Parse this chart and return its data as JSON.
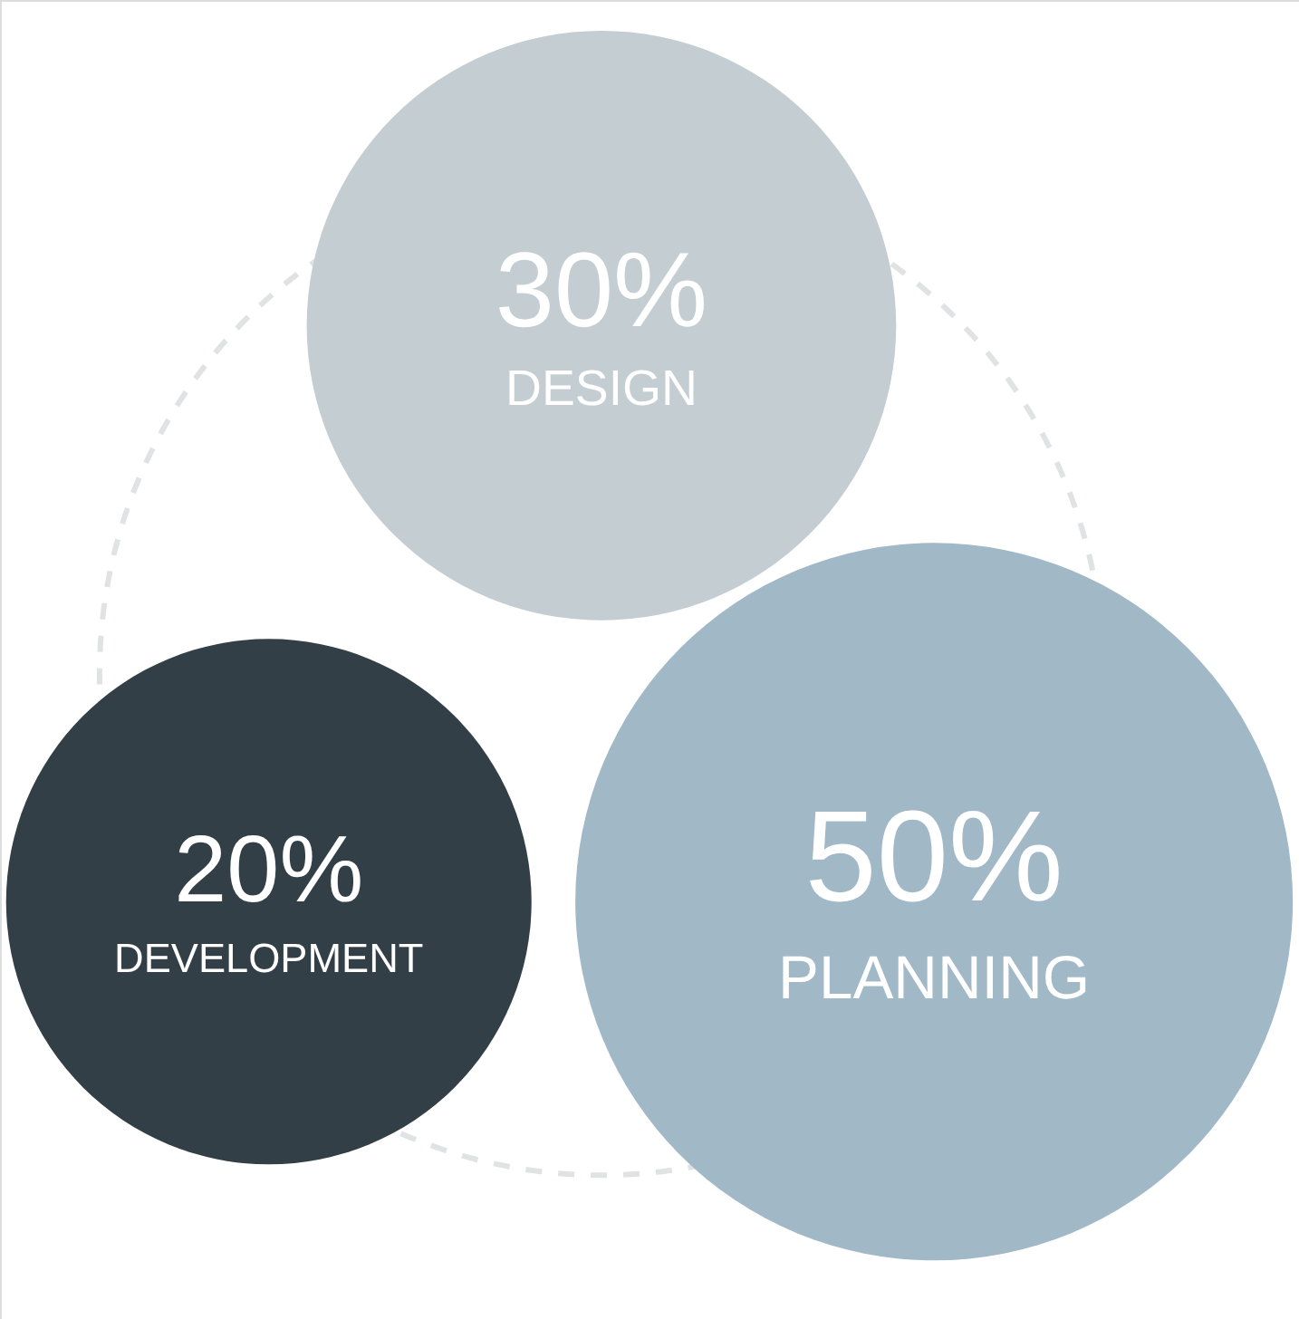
{
  "chart_data": {
    "type": "other",
    "categories": [
      "DESIGN",
      "DEVELOPMENT",
      "PLANNING"
    ],
    "values": [
      30,
      20,
      50
    ],
    "value_labels": [
      "30%",
      "20%",
      "50%"
    ],
    "colors": [
      "#c3cdd2",
      "#333f47",
      "#a1b8c7"
    ]
  }
}
